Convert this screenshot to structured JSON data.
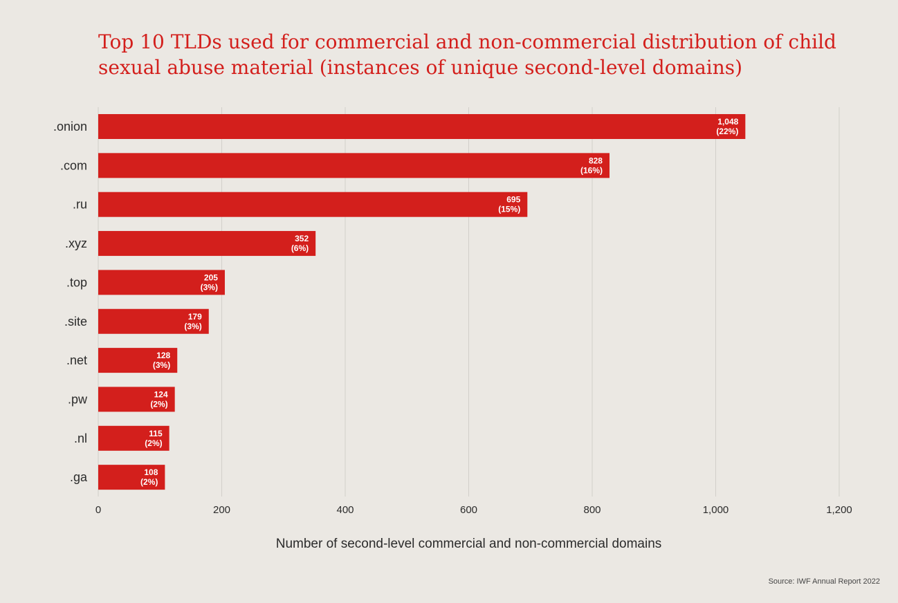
{
  "chart_data": {
    "type": "bar",
    "orientation": "horizontal",
    "title_lines": [
      "Top 10 TLDs used for commercial and non-commercial distribution of child",
      "sexual abuse material (instances of unique second-level domains)"
    ],
    "xlabel": "Number of second-level commercial and non-commercial domains",
    "ylabel": "",
    "categories": [
      ".onion",
      ".com",
      ".ru",
      ".xyz",
      ".top",
      ".site",
      ".net",
      ".pw",
      ".nl",
      ".ga"
    ],
    "values": [
      1048,
      828,
      695,
      352,
      205,
      179,
      128,
      124,
      115,
      108
    ],
    "value_labels": [
      "1,048",
      "828",
      "695",
      "352",
      "205",
      "179",
      "128",
      "124",
      "115",
      "108"
    ],
    "percent_labels": [
      "(22%)",
      "(16%)",
      "(15%)",
      "(6%)",
      "(3%)",
      "(3%)",
      "(3%)",
      "(2%)",
      "(2%)",
      "(2%)"
    ],
    "xlim": [
      0,
      1200
    ],
    "xticks": [
      0,
      200,
      400,
      600,
      800,
      1000,
      1200
    ],
    "xtick_labels": [
      "0",
      "200",
      "400",
      "600",
      "800",
      "1,000",
      "1,200"
    ],
    "grid": "vertical",
    "source": "Source: IWF Annual Report 2022",
    "colors": {
      "bar": "#d31f1c",
      "grid": "#d2cfca",
      "axis_text": "#2b2b2b",
      "bar_label": "#ffffff",
      "background": "#ebe8e3"
    }
  }
}
